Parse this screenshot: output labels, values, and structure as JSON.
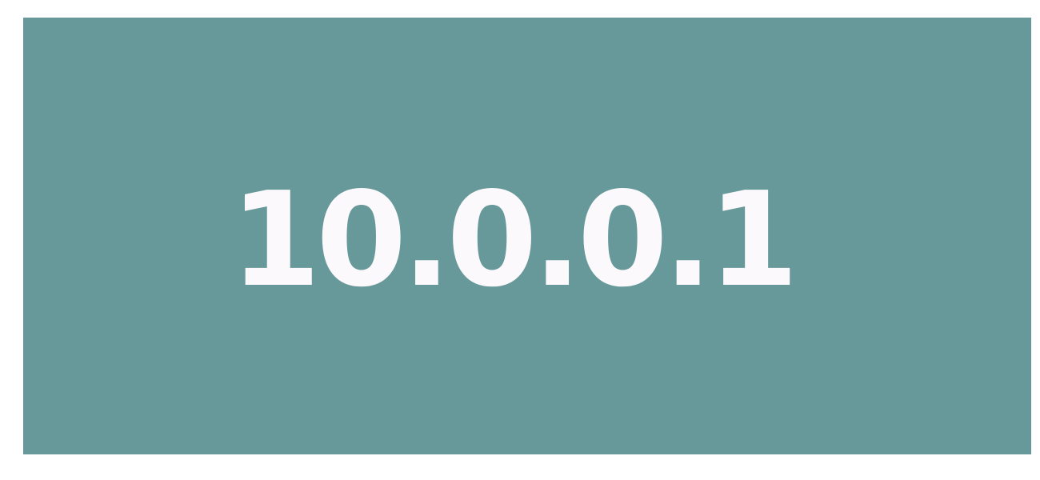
{
  "banner": {
    "text": "10.0.0.1",
    "background_color": "#67999a",
    "text_color": "#fbf9fb"
  }
}
